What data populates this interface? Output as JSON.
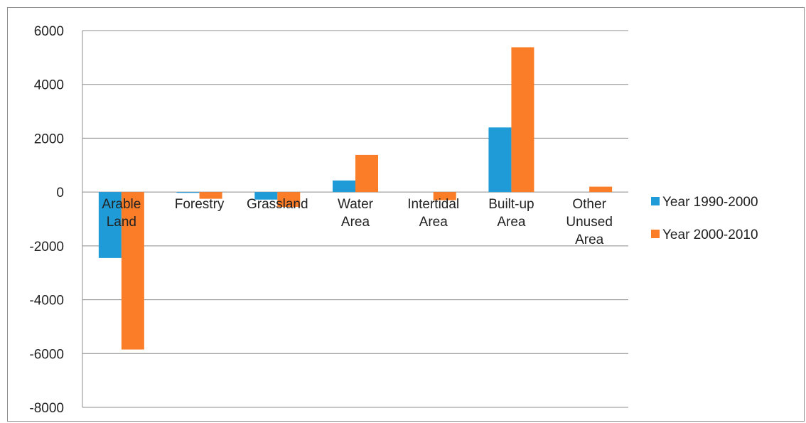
{
  "chart_data": {
    "type": "bar",
    "categories": [
      [
        "Arable",
        "Land"
      ],
      [
        "Forestry"
      ],
      [
        "Grassland"
      ],
      [
        "Water",
        "Area"
      ],
      [
        "Intertidal",
        "Area"
      ],
      [
        "Built-up",
        "Area"
      ],
      [
        "Other",
        "Unused",
        "Area"
      ]
    ],
    "series": [
      {
        "name": "Year 1990-2000",
        "color": "#1f9bd7",
        "values": [
          -2450,
          -30,
          -280,
          430,
          0,
          2400,
          0
        ]
      },
      {
        "name": "Year 2000-2010",
        "color": "#fb7d28",
        "values": [
          -5850,
          -250,
          -550,
          1380,
          -300,
          5380,
          200
        ]
      }
    ],
    "ylim": [
      -8000,
      6000
    ],
    "yticks": [
      6000,
      4000,
      2000,
      0,
      -2000,
      -4000,
      -6000,
      -8000
    ],
    "grid": true,
    "legend_position": "right",
    "title": "",
    "xlabel": "",
    "ylabel": ""
  }
}
